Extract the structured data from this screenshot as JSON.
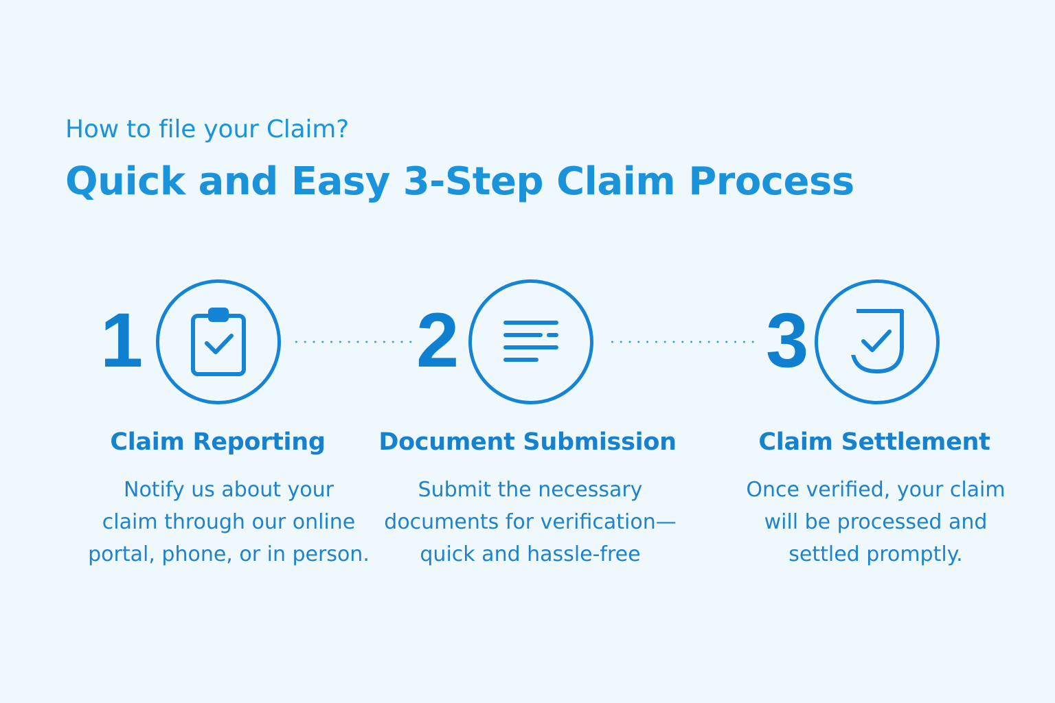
{
  "header": {
    "eyebrow": "How to file your Claim?",
    "headline": "Quick and Easy 3-Step Claim Process"
  },
  "colors": {
    "background": "#eef8fd",
    "accent": "#1a93db",
    "number": "#0f7fcf"
  },
  "steps": [
    {
      "number": "1",
      "icon": "clipboard-check-icon",
      "title": "Claim Reporting",
      "description": [
        "Notify us about your",
        "claim through our online",
        "portal, phone, or in person."
      ]
    },
    {
      "number": "2",
      "icon": "document-lines-icon",
      "title": "Document Submission",
      "description": [
        "Submit the necessary",
        "documents for verification—",
        "quick and hassle-free"
      ]
    },
    {
      "number": "3",
      "icon": "shield-check-icon",
      "title": "Claim Settlement",
      "description": [
        "Once verified, your claim",
        "will be processed and",
        "settled promptly."
      ]
    }
  ]
}
